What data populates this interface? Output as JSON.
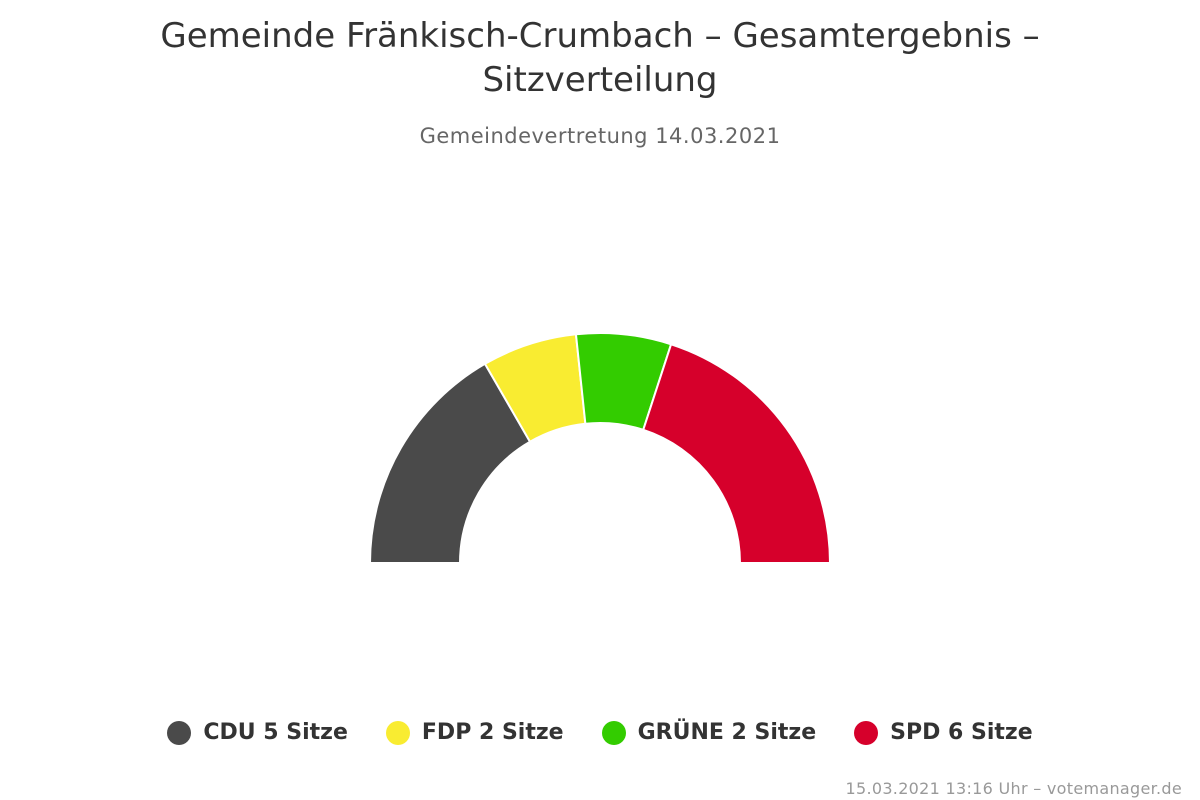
{
  "chart_data": {
    "type": "pie",
    "subtype": "parliament-semicircle",
    "title": "Gemeinde Fränkisch-Crumbach – Gesamtergebnis –",
    "title_line2": "Sitzverteilung",
    "subtitle": "Gemeindevertretung 14.03.2021",
    "unit": "Sitze",
    "total_seats": 15,
    "series": [
      {
        "name": "CDU",
        "seats": 5,
        "color": "#4a4a4a",
        "label": "CDU 5 Sitze"
      },
      {
        "name": "FDP",
        "seats": 2,
        "color": "#f9ec31",
        "label": "FDP 2 Sitze"
      },
      {
        "name": "GRÜNE",
        "seats": 2,
        "color": "#33cc00",
        "label": "GRÜNE 2 Sitze"
      },
      {
        "name": "SPD",
        "seats": 6,
        "color": "#d6002b",
        "label": "SPD 6 Sitze"
      }
    ],
    "legend_position": "bottom"
  },
  "credits": "15.03.2021 13:16 Uhr – votemanager.de"
}
